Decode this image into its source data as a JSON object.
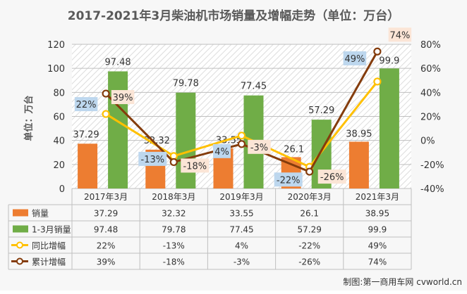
{
  "chart_data": {
    "type": "bar",
    "title": "2017-2021年3月柴油机市场销量及增幅走势（单位：万台）",
    "ylabel": "单位：万台",
    "categories": [
      "2017年3月",
      "2018年3月",
      "2019年3月",
      "2020年3月",
      "2021年3月"
    ],
    "ylim": [
      0,
      120
    ],
    "yticks": [
      0,
      20,
      40,
      60,
      80,
      100,
      120
    ],
    "y2lim": [
      -40,
      80
    ],
    "y2ticks": [
      "-40%",
      "-20%",
      "0%",
      "20%",
      "40%",
      "60%",
      "80%"
    ],
    "grid": true,
    "series": [
      {
        "name": "销量",
        "kind": "bar",
        "axis": "left",
        "color": "#ed7d31",
        "values": [
          37.29,
          32.32,
          33.55,
          26.1,
          38.95
        ],
        "labels": [
          "37.29",
          "32.32",
          "33.55",
          "26.1",
          "38.95"
        ]
      },
      {
        "name": "1-3月销量",
        "kind": "bar",
        "axis": "left",
        "color": "#70ad47",
        "values": [
          97.48,
          79.78,
          77.45,
          57.29,
          99.9
        ],
        "labels": [
          "97.48",
          "79.78",
          "77.45",
          "57.29",
          "99.9"
        ]
      },
      {
        "name": "同比增幅",
        "kind": "line",
        "axis": "right",
        "color": "#ffc000",
        "label_bg": "#bdd7ee",
        "values": [
          22,
          -13,
          4,
          -22,
          49
        ],
        "labels": [
          "22%",
          "-13%",
          "4%",
          "-22%",
          "49%"
        ]
      },
      {
        "name": "累计增幅",
        "kind": "line",
        "axis": "right",
        "color": "#843c0c",
        "label_bg": "#fbe5d6",
        "values": [
          39,
          -18,
          -3,
          -26,
          74
        ],
        "labels": [
          "39%",
          "-18%",
          "-3%",
          "-26%",
          "74%"
        ]
      }
    ],
    "source_note": "制图:第一商用车网 cvworld.cn"
  }
}
